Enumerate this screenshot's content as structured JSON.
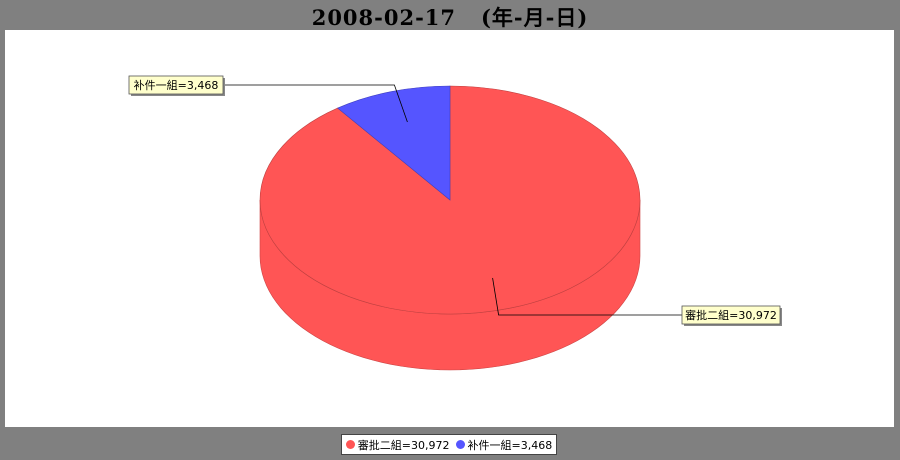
{
  "title": "2008-02-17   (年-月-日)",
  "chart_data": {
    "type": "pie",
    "style": "3d",
    "slices": [
      {
        "label": "審批二組",
        "value": 30972,
        "display": "審批二組=30,972",
        "color": "#ff5555"
      },
      {
        "label": "补件一組",
        "value": 3468,
        "display": "补件一組=3,468",
        "color": "#5555ff"
      }
    ],
    "legend": {
      "position": "bottom",
      "items": [
        {
          "text": "審批二組=30,972",
          "color": "#ff5555"
        },
        {
          "text": "补件一組=3,468",
          "color": "#5555ff"
        }
      ]
    },
    "label_fill": "#ffffcc"
  }
}
